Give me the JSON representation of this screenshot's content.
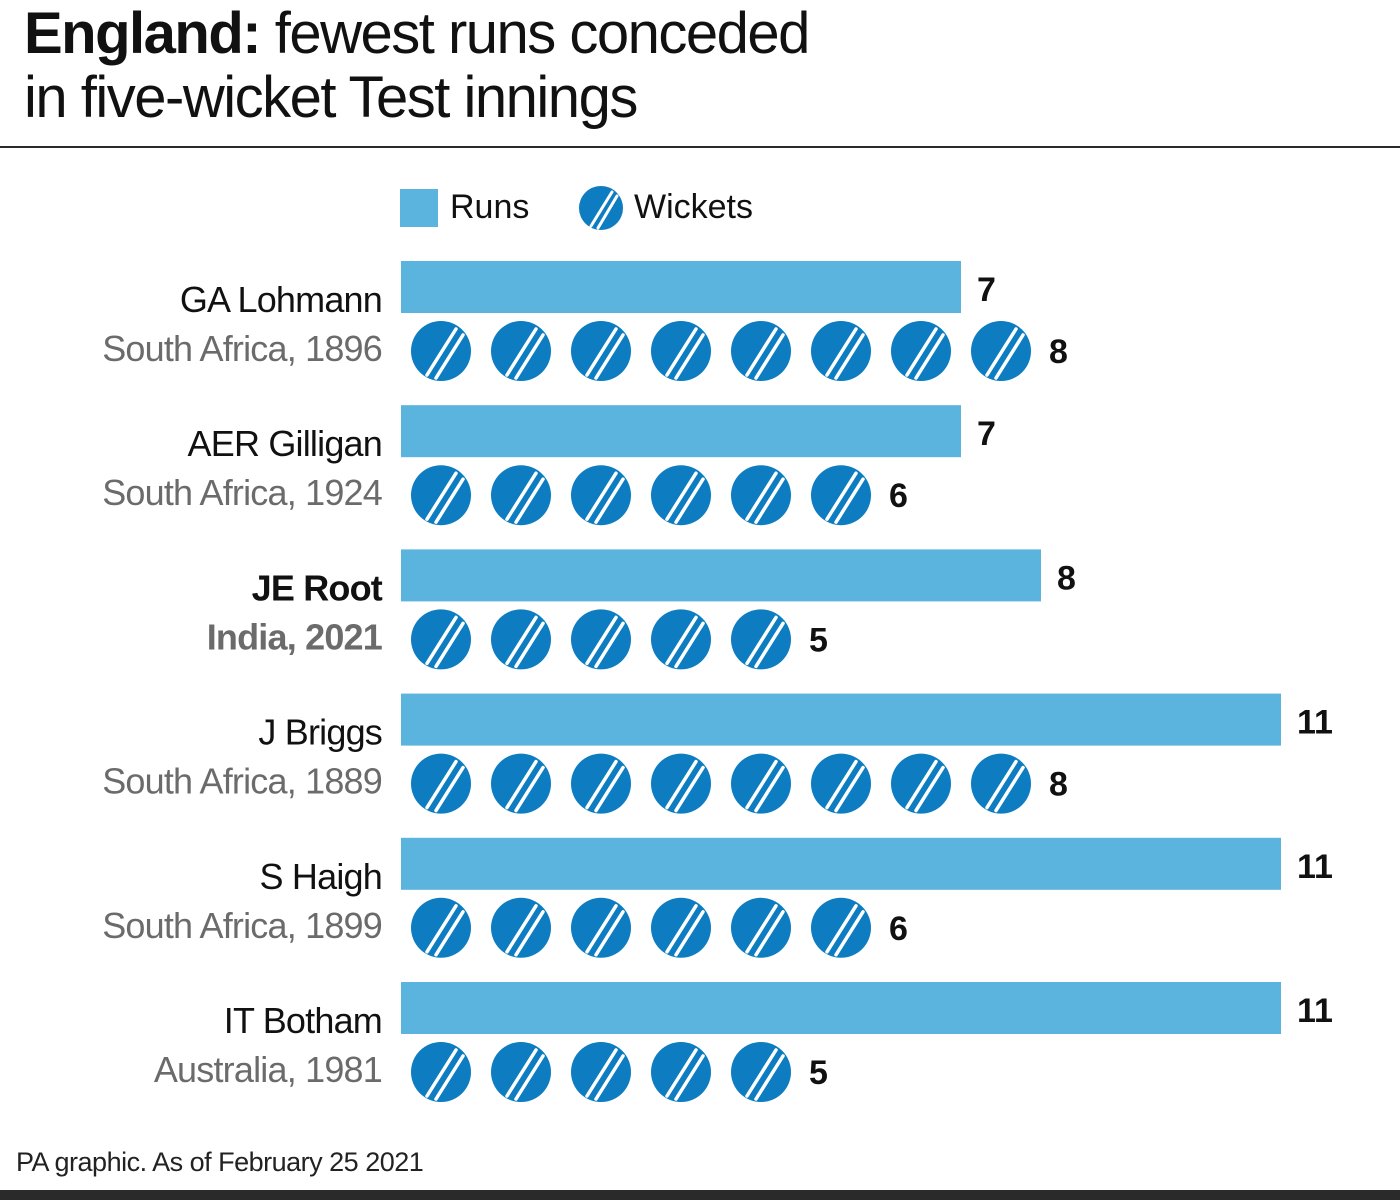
{
  "header": {
    "title_bold": "England:",
    "title_rest_line1": " fewest runs conceded",
    "title_line2": "in five-wicket Test innings"
  },
  "legend": {
    "runs_label": "Runs",
    "wickets_label": "Wickets",
    "ball_icon": "cricket-ball-icon"
  },
  "colors": {
    "runs_bar": "#5ab4de",
    "wicket_ball": "#0d7cc0",
    "ball_seam": "#ffffff",
    "player_name": "#111111",
    "match_text": "#6b6b6b",
    "rule": "#2a2a2a"
  },
  "chart_data": {
    "type": "bar",
    "orientation": "horizontal",
    "title": "England: fewest runs conceded in five-wicket Test innings",
    "categories": [
      "GA Lohmann",
      "AER Gilligan",
      "JE Root",
      "J Briggs",
      "S Haigh",
      "IT Botham"
    ],
    "subcategories": [
      "South Africa, 1896",
      "South Africa, 1924",
      "India, 2021",
      "South Africa, 1889",
      "South Africa, 1899",
      "Australia, 1981"
    ],
    "series": [
      {
        "name": "Runs",
        "values": [
          7,
          7,
          8,
          11,
          11,
          11
        ]
      },
      {
        "name": "Wickets",
        "values": [
          8,
          6,
          5,
          8,
          6,
          5
        ]
      }
    ],
    "highlighted": "JE Root",
    "xlim": [
      0,
      11
    ],
    "grid": false,
    "legend_position": "top"
  },
  "footer": {
    "source": "PA graphic. As of February 25 2021"
  }
}
